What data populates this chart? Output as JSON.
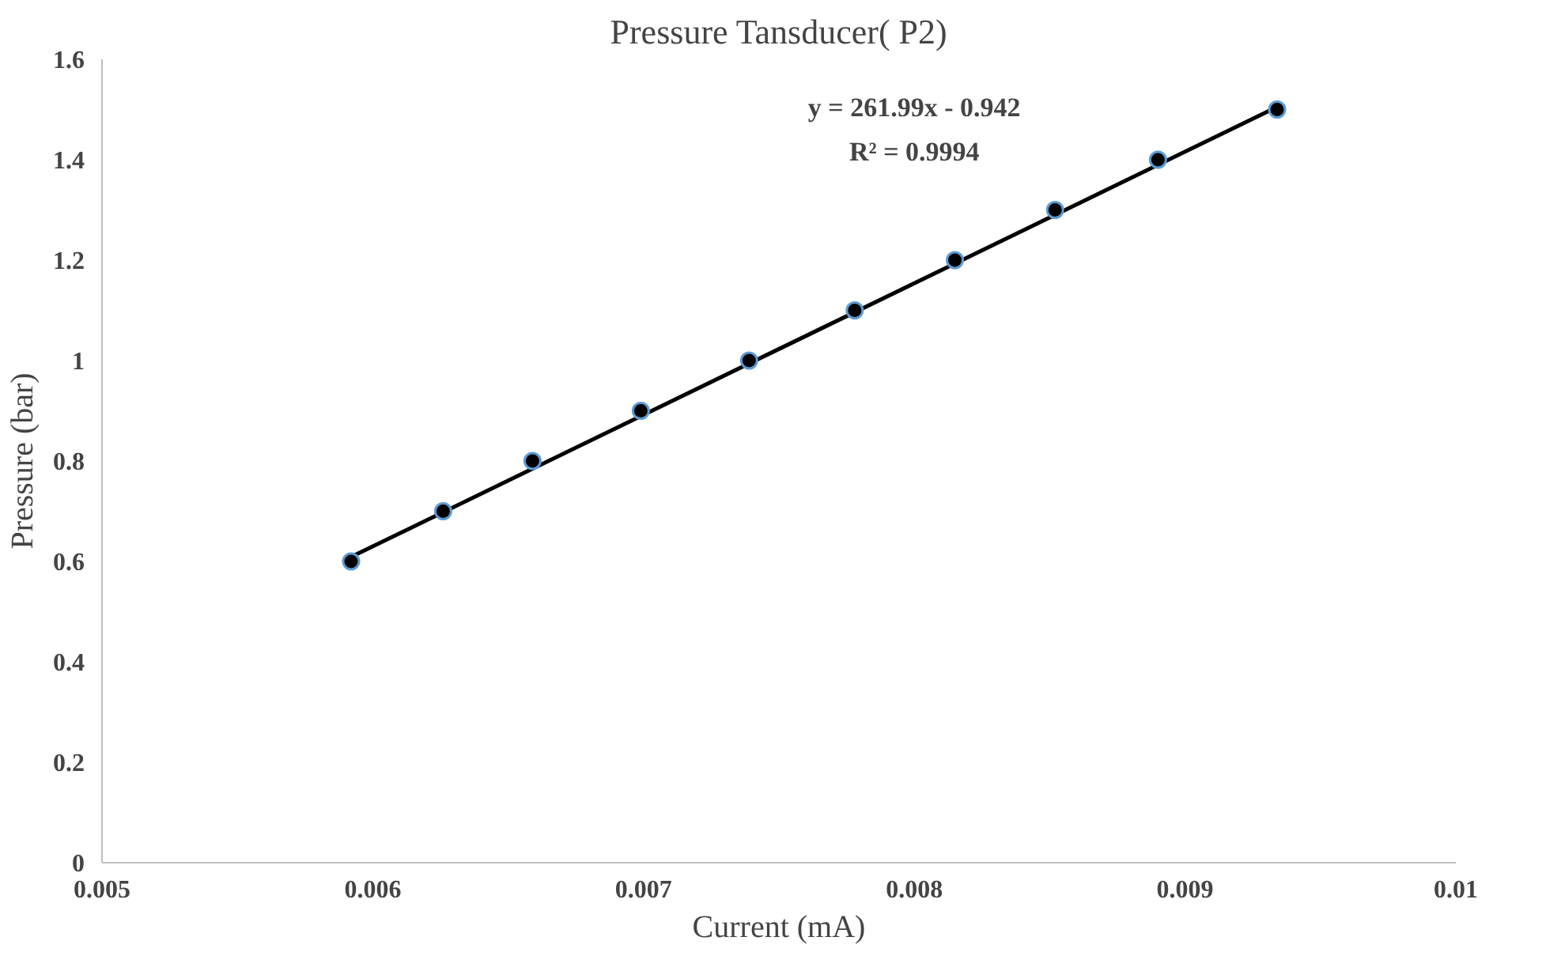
{
  "chart_data": {
    "type": "scatter",
    "title": "Pressure Tansducer( P2)",
    "xlabel": "Current (mA)",
    "ylabel": "Pressure (bar)",
    "xlim": [
      0.005,
      0.01
    ],
    "xticks": [
      0.005,
      0.006,
      0.007,
      0.008,
      0.009,
      0.01
    ],
    "ylim": [
      0,
      1.6
    ],
    "yticks": [
      0,
      0.2,
      0.4,
      0.6,
      0.8,
      1,
      1.2,
      1.4,
      1.6
    ],
    "grid": false,
    "annotations": [
      "y = 261.99x - 0.942",
      "R² = 0.9994"
    ],
    "series": [
      {
        "marker": "circle",
        "color": "#000000",
        "x": [
          0.00592,
          0.00626,
          0.00659,
          0.00699,
          0.00739,
          0.00778,
          0.00815,
          0.00852,
          0.0089,
          0.00934
        ],
        "values": [
          0.6,
          0.7,
          0.8,
          0.9,
          1.0,
          1.1,
          1.2,
          1.3,
          1.4,
          1.5
        ]
      },
      {
        "type": "line",
        "color": "#000000",
        "line_style": "solid",
        "x": [
          0.00592,
          0.00934
        ],
        "values": [
          0.609,
          1.505
        ]
      }
    ]
  }
}
